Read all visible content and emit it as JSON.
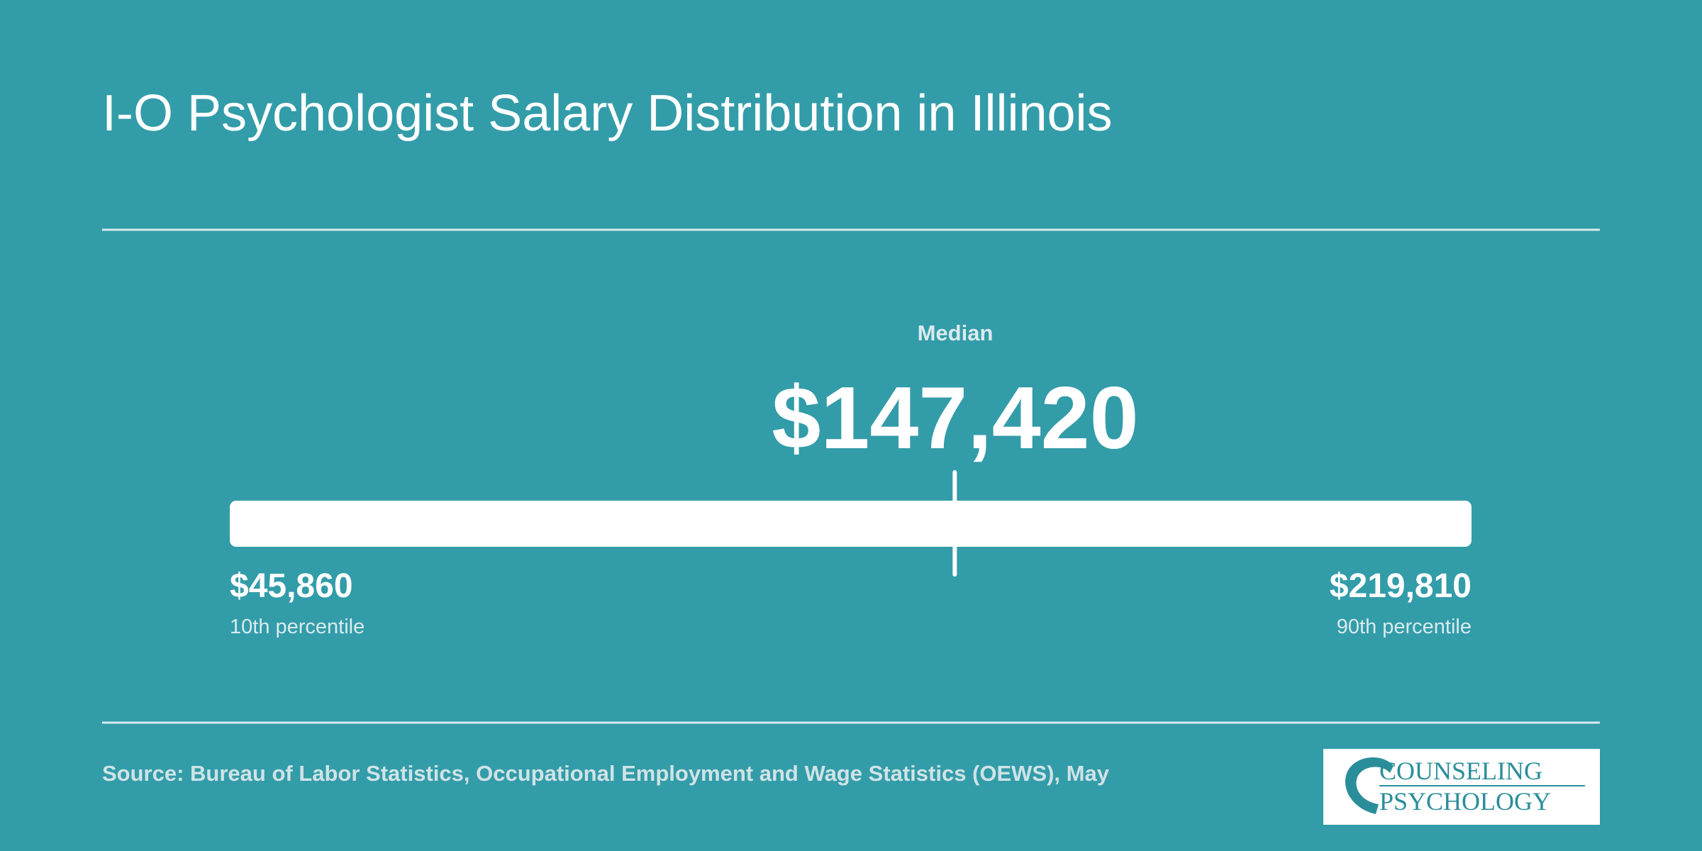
{
  "title": "I-O Psychologist Salary Distribution in Illinois",
  "median": {
    "label": "Median",
    "value": 147420,
    "value_label": "$147,420"
  },
  "low": {
    "value": 45860,
    "value_label": "$45,860",
    "label": "10th percentile"
  },
  "high": {
    "value": 219810,
    "value_label": "$219,810",
    "label": "90th percentile"
  },
  "source": "Source: Bureau of Labor Statistics, Occupational Employment and Wage Statistics (OEWS), May",
  "logo": {
    "line1": "COUNSELING",
    "line2": "PSYCHOLOGY"
  }
}
